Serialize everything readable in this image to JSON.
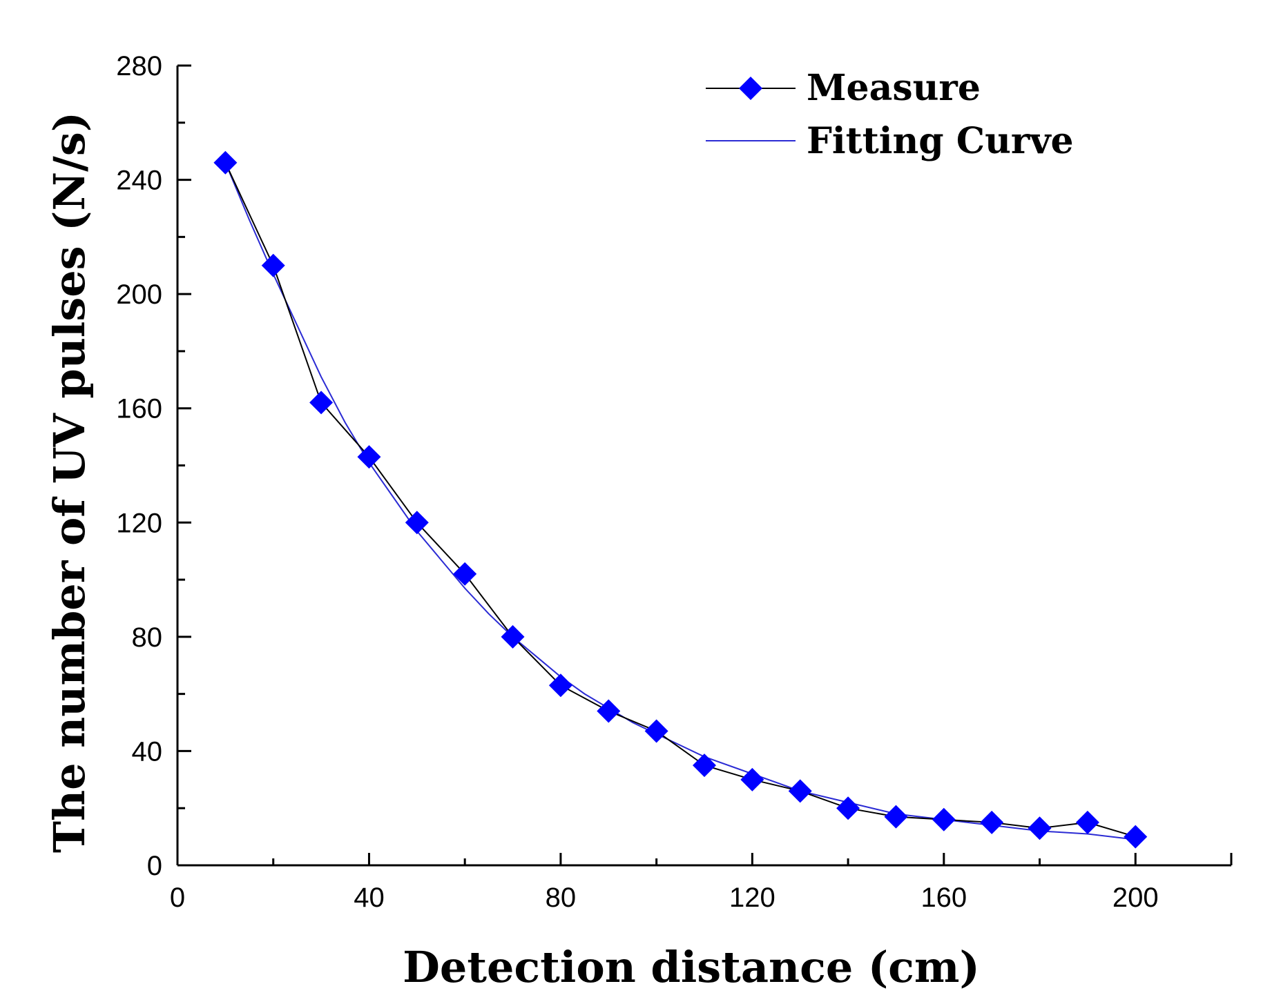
{
  "chart_data": {
    "type": "line",
    "title": "",
    "xlabel": "Detection distance (cm)",
    "ylabel": "The number of UV pulses (N/s)",
    "xlim": [
      0,
      220
    ],
    "ylim": [
      0,
      280
    ],
    "x_ticks": [
      0,
      40,
      80,
      120,
      160,
      200
    ],
    "x_tick_labels": [
      "0",
      "40",
      "80",
      "120",
      "160",
      "200"
    ],
    "y_ticks": [
      0,
      40,
      80,
      120,
      160,
      200,
      240,
      280
    ],
    "y_tick_labels": [
      "0",
      "40",
      "80",
      "120",
      "160",
      "200",
      "240",
      "280"
    ],
    "grid": false,
    "legend_position": "top-right",
    "series": [
      {
        "name": "Measure",
        "style": "line-with-diamond-markers",
        "line_color": "#000000",
        "marker_color": "#0000ff",
        "x": [
          10,
          20,
          30,
          40,
          50,
          60,
          70,
          80,
          90,
          100,
          110,
          120,
          130,
          140,
          150,
          160,
          170,
          180,
          190,
          200
        ],
        "y": [
          246,
          210,
          162,
          143,
          120,
          102,
          80,
          63,
          54,
          47,
          35,
          30,
          26,
          20,
          17,
          16,
          15,
          13,
          15,
          10
        ]
      },
      {
        "name": "Fitting Curve",
        "style": "line",
        "line_color": "#2b2bd4",
        "x": [
          10,
          15,
          20,
          25,
          30,
          35,
          40,
          45,
          50,
          55,
          60,
          65,
          70,
          75,
          80,
          85,
          90,
          95,
          100,
          110,
          120,
          130,
          140,
          150,
          160,
          170,
          180,
          190,
          200
        ],
        "y": [
          246,
          226,
          207,
          189,
          171,
          155,
          141,
          129,
          117,
          107,
          97,
          88,
          80,
          73,
          66,
          60,
          55,
          50,
          46,
          38,
          32,
          26,
          22,
          18,
          16,
          14,
          12,
          11,
          9
        ]
      }
    ]
  }
}
